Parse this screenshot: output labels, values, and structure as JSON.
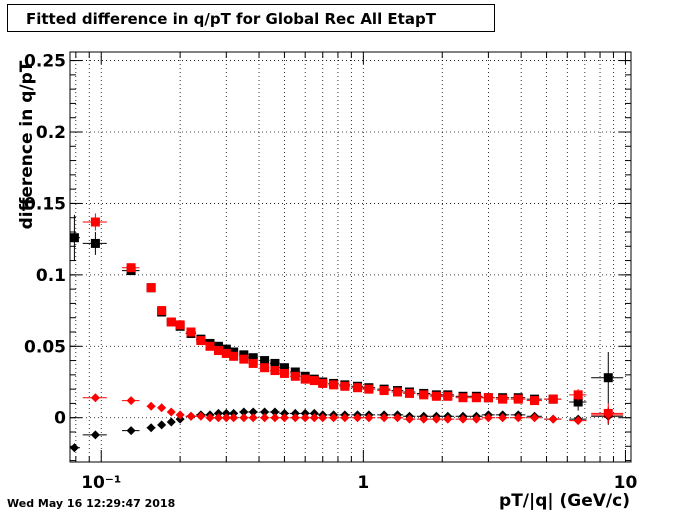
{
  "chart_data": {
    "type": "scatter",
    "title": "Fitted difference in q/pT for Global Rec All EtapT",
    "xlabel": "pT/|q| (GeV/c)",
    "ylabel": "difference in q/pT",
    "xscale": "log",
    "xlim": [
      0.076,
      10.5
    ],
    "ylim": [
      -0.031,
      0.256
    ],
    "grid": true,
    "x_ticks": [
      {
        "value": 0.1,
        "label": "10⁻¹"
      },
      {
        "value": 1,
        "label": "1"
      },
      {
        "value": 10,
        "label": "10"
      }
    ],
    "y_ticks": [
      {
        "value": 0,
        "label": "0"
      },
      {
        "value": 0.05,
        "label": "0.05"
      },
      {
        "value": 0.1,
        "label": "0.1"
      },
      {
        "value": 0.15,
        "label": "0.15"
      },
      {
        "value": 0.2,
        "label": "0.2"
      },
      {
        "value": 0.25,
        "label": "0.25"
      }
    ],
    "series": [
      {
        "marker": "square",
        "color": "#000000",
        "x": [
          0.079,
          0.095,
          0.13,
          0.155,
          0.17,
          0.185,
          0.2,
          0.22,
          0.24,
          0.26,
          0.28,
          0.3,
          0.32,
          0.35,
          0.38,
          0.42,
          0.46,
          0.5,
          0.55,
          0.6,
          0.65,
          0.7,
          0.77,
          0.85,
          0.95,
          1.05,
          1.2,
          1.35,
          1.5,
          1.7,
          1.9,
          2.1,
          2.4,
          2.7,
          3.0,
          3.4,
          3.9,
          4.5,
          5.3,
          6.6,
          8.6
        ],
        "y": [
          0.126,
          0.122,
          0.103,
          0.091,
          0.074,
          0.067,
          0.064,
          0.059,
          0.055,
          0.052,
          0.05,
          0.048,
          0.046,
          0.044,
          0.042,
          0.04,
          0.038,
          0.035,
          0.032,
          0.029,
          0.027,
          0.025,
          0.024,
          0.023,
          0.022,
          0.021,
          0.02,
          0.019,
          0.018,
          0.017,
          0.016,
          0.016,
          0.015,
          0.015,
          0.014,
          0.014,
          0.014,
          0.013,
          0.013,
          0.011,
          0.028
        ],
        "ex": [
          0.004,
          0.01,
          0.01,
          0.006,
          0.006,
          0.006,
          0.007,
          0.01,
          0.01,
          0.01,
          0.01,
          0.01,
          0.012,
          0.014,
          0.016,
          0.018,
          0.02,
          0.022,
          0.025,
          0.025,
          0.025,
          0.03,
          0.035,
          0.04,
          0.05,
          0.06,
          0.07,
          0.07,
          0.08,
          0.1,
          0.1,
          0.12,
          0.15,
          0.15,
          0.17,
          0.2,
          0.25,
          0.3,
          0.4,
          0.5,
          1.2
        ],
        "ey": [
          0.016,
          0.008,
          0.002,
          0.002,
          0.002,
          0.002,
          0.002,
          0.001,
          0.001,
          0.001,
          0.001,
          0.001,
          0.001,
          0.001,
          0.001,
          0.001,
          0.001,
          0.001,
          0.001,
          0.001,
          0.001,
          0.001,
          0.001,
          0.001,
          0.001,
          0.001,
          0.001,
          0.001,
          0.001,
          0.001,
          0.001,
          0.001,
          0.001,
          0.001,
          0.001,
          0.001,
          0.001,
          0.002,
          0.003,
          0.006,
          0.018
        ]
      },
      {
        "marker": "square",
        "color": "#ff0000",
        "x": [
          0.095,
          0.13,
          0.155,
          0.17,
          0.185,
          0.2,
          0.22,
          0.24,
          0.26,
          0.28,
          0.3,
          0.32,
          0.35,
          0.38,
          0.42,
          0.46,
          0.5,
          0.55,
          0.6,
          0.65,
          0.7,
          0.77,
          0.85,
          0.95,
          1.05,
          1.2,
          1.35,
          1.5,
          1.7,
          1.9,
          2.1,
          2.4,
          2.7,
          3.0,
          3.4,
          3.9,
          4.5,
          5.3,
          6.6,
          8.6
        ],
        "y": [
          0.137,
          0.105,
          0.091,
          0.075,
          0.067,
          0.065,
          0.06,
          0.054,
          0.05,
          0.047,
          0.045,
          0.043,
          0.041,
          0.038,
          0.035,
          0.033,
          0.031,
          0.029,
          0.027,
          0.026,
          0.024,
          0.023,
          0.022,
          0.021,
          0.02,
          0.019,
          0.018,
          0.017,
          0.016,
          0.015,
          0.015,
          0.014,
          0.014,
          0.014,
          0.013,
          0.013,
          0.012,
          0.013,
          0.016,
          0.003
        ],
        "ex": [
          0.01,
          0.01,
          0.006,
          0.006,
          0.006,
          0.007,
          0.01,
          0.01,
          0.01,
          0.01,
          0.01,
          0.012,
          0.014,
          0.016,
          0.018,
          0.02,
          0.022,
          0.025,
          0.025,
          0.025,
          0.03,
          0.035,
          0.04,
          0.05,
          0.06,
          0.07,
          0.07,
          0.08,
          0.1,
          0.1,
          0.12,
          0.15,
          0.15,
          0.17,
          0.2,
          0.25,
          0.3,
          0.4,
          0.5,
          1.2
        ],
        "ey": [
          0.006,
          0.002,
          0.002,
          0.002,
          0.002,
          0.002,
          0.001,
          0.001,
          0.001,
          0.001,
          0.001,
          0.001,
          0.001,
          0.001,
          0.001,
          0.001,
          0.001,
          0.001,
          0.001,
          0.001,
          0.001,
          0.001,
          0.001,
          0.001,
          0.001,
          0.001,
          0.001,
          0.001,
          0.001,
          0.001,
          0.001,
          0.001,
          0.001,
          0.001,
          0.001,
          0.001,
          0.002,
          0.002,
          0.004,
          0.007
        ]
      },
      {
        "marker": "diamond",
        "color": "#000000",
        "x": [
          0.079,
          0.095,
          0.13,
          0.155,
          0.17,
          0.185,
          0.2,
          0.22,
          0.24,
          0.26,
          0.28,
          0.3,
          0.32,
          0.35,
          0.38,
          0.42,
          0.46,
          0.5,
          0.55,
          0.6,
          0.65,
          0.7,
          0.77,
          0.85,
          0.95,
          1.05,
          1.2,
          1.35,
          1.5,
          1.7,
          1.9,
          2.1,
          2.4,
          2.7,
          3.0,
          3.4,
          3.9,
          4.5,
          5.3,
          6.6,
          8.6
        ],
        "y": [
          -0.021,
          -0.012,
          -0.009,
          -0.007,
          -0.005,
          -0.003,
          -0.001,
          0.001,
          0.002,
          0.002,
          0.003,
          0.003,
          0.003,
          0.004,
          0.004,
          0.004,
          0.004,
          0.003,
          0.003,
          0.003,
          0.003,
          0.002,
          0.002,
          0.002,
          0.002,
          0.002,
          0.002,
          0.002,
          0.001,
          0.001,
          0.001,
          0.001,
          0.001,
          0.001,
          0.002,
          0.002,
          0.002,
          0.001,
          -0.001,
          -0.001,
          0.001
        ],
        "ex": [
          0.004,
          0.01,
          0.01,
          0.006,
          0.006,
          0.006,
          0.007,
          0.01,
          0.01,
          0.01,
          0.01,
          0.01,
          0.012,
          0.014,
          0.016,
          0.018,
          0.02,
          0.022,
          0.025,
          0.025,
          0.025,
          0.03,
          0.035,
          0.04,
          0.05,
          0.06,
          0.07,
          0.07,
          0.08,
          0.1,
          0.1,
          0.12,
          0.15,
          0.15,
          0.17,
          0.2,
          0.25,
          0.3,
          0.4,
          0.5,
          1.2
        ],
        "ey": [
          0.003,
          0.002,
          0.001,
          0.001,
          0.001,
          0.001,
          0.001,
          0.001,
          0.001,
          0.001,
          0.001,
          0.001,
          0.001,
          0.001,
          0.001,
          0.001,
          0.001,
          0.001,
          0.001,
          0.001,
          0.001,
          0.001,
          0.001,
          0.001,
          0.001,
          0.001,
          0.001,
          0.001,
          0.001,
          0.001,
          0.001,
          0.001,
          0.001,
          0.001,
          0.001,
          0.001,
          0.001,
          0.001,
          0.002,
          0.002,
          0.006
        ]
      },
      {
        "marker": "diamond",
        "color": "#ff0000",
        "x": [
          0.095,
          0.13,
          0.155,
          0.17,
          0.185,
          0.2,
          0.22,
          0.24,
          0.26,
          0.28,
          0.3,
          0.32,
          0.35,
          0.38,
          0.42,
          0.46,
          0.5,
          0.55,
          0.6,
          0.65,
          0.7,
          0.77,
          0.85,
          0.95,
          1.05,
          1.2,
          1.35,
          1.5,
          1.7,
          1.9,
          2.1,
          2.4,
          2.7,
          3.0,
          3.4,
          3.9,
          4.5,
          5.3,
          6.6,
          8.6
        ],
        "y": [
          0.014,
          0.012,
          0.008,
          0.007,
          0.004,
          0.002,
          0.001,
          0.001,
          0.0,
          0.0,
          0.0,
          0.0,
          0.0,
          0.0,
          0.0,
          0.0,
          0.0,
          0.0,
          0.0,
          0.0,
          0.0,
          0.0,
          0.0,
          0.0,
          0.0,
          0.0,
          0.0,
          -0.001,
          -0.001,
          -0.001,
          -0.001,
          -0.001,
          -0.001,
          0.0,
          0.0,
          0.0,
          0.0,
          -0.001,
          -0.002,
          0.002
        ],
        "ex": [
          0.01,
          0.01,
          0.006,
          0.006,
          0.006,
          0.007,
          0.01,
          0.01,
          0.01,
          0.01,
          0.01,
          0.012,
          0.014,
          0.016,
          0.018,
          0.02,
          0.022,
          0.025,
          0.025,
          0.025,
          0.03,
          0.035,
          0.04,
          0.05,
          0.06,
          0.07,
          0.07,
          0.08,
          0.1,
          0.1,
          0.12,
          0.15,
          0.15,
          0.17,
          0.2,
          0.25,
          0.3,
          0.4,
          0.5,
          1.2
        ],
        "ey": [
          0.001,
          0.001,
          0.001,
          0.001,
          0.001,
          0.001,
          0.001,
          0.001,
          0.001,
          0.001,
          0.001,
          0.001,
          0.001,
          0.001,
          0.001,
          0.001,
          0.001,
          0.001,
          0.001,
          0.001,
          0.001,
          0.001,
          0.001,
          0.001,
          0.001,
          0.001,
          0.001,
          0.001,
          0.001,
          0.001,
          0.001,
          0.001,
          0.001,
          0.001,
          0.001,
          0.001,
          0.001,
          0.002,
          0.002,
          0.006
        ]
      }
    ]
  },
  "timestamp": "Wed May 16 12:29:47 2018"
}
